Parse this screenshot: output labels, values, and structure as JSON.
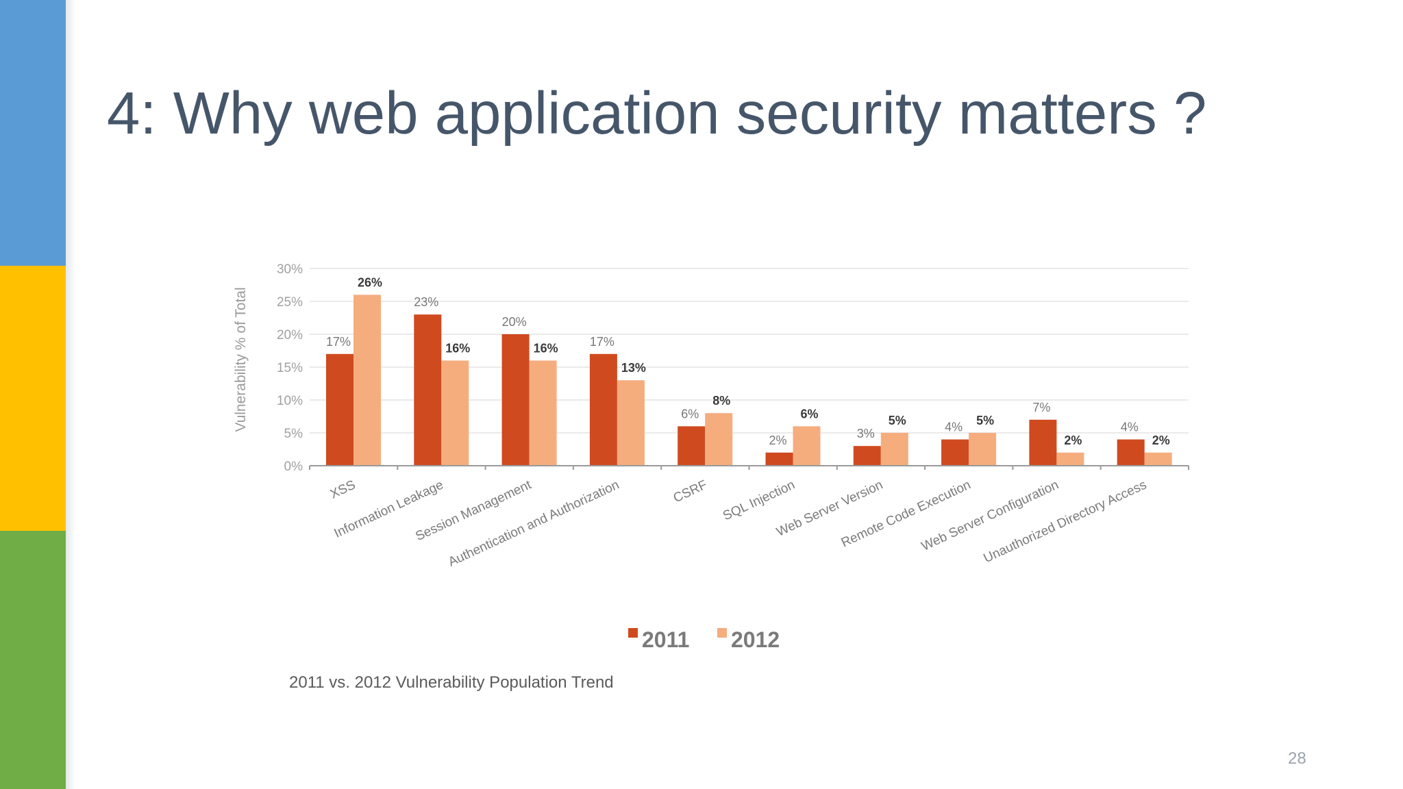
{
  "slide": {
    "title": "4: Why web application security matters ?",
    "page_number": "28"
  },
  "theme": {
    "sidebar_colors": [
      "#5b9bd5",
      "#ffc000",
      "#70ad47"
    ],
    "title_color": "#46566a"
  },
  "chart_data": {
    "type": "bar",
    "title": "2011 vs. 2012 Vulnerability Population Trend",
    "ylabel": "Vulnerability % of Total",
    "xlabel": "",
    "ylim": [
      0,
      30
    ],
    "yticks": [
      "0%",
      "5%",
      "10%",
      "15%",
      "20%",
      "25%",
      "30%"
    ],
    "categories": [
      "XSS",
      "Information Leakage",
      "Session Management",
      "Authentication and Authorization",
      "CSRF",
      "SQL Injection",
      "Web Server Version",
      "Remote Code Execution",
      "Web Server Configuration",
      "Unauthorized Directory Access"
    ],
    "series": [
      {
        "name": "2011",
        "color": "#cf4a1f",
        "values": [
          17,
          23,
          20,
          17,
          6,
          2,
          3,
          4,
          7,
          4
        ],
        "labels": [
          "17%",
          "23%",
          "20%",
          "17%",
          "6%",
          "2%",
          "3%",
          "4%",
          "7%",
          "4%"
        ]
      },
      {
        "name": "2012",
        "color": "#f5ad7e",
        "values": [
          26,
          16,
          16,
          13,
          8,
          6,
          5,
          5,
          2,
          2
        ],
        "labels": [
          "26%",
          "16%",
          "16%",
          "13%",
          "8%",
          "6%",
          "5%",
          "5%",
          "2%",
          "2%"
        ]
      }
    ],
    "grid": true,
    "legend_position": "bottom"
  }
}
